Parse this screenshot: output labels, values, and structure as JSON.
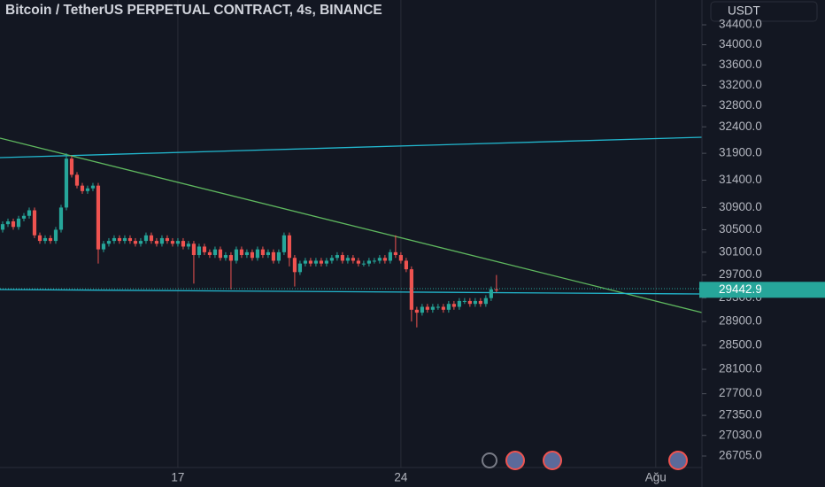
{
  "chart_data": {
    "type": "candlestick",
    "title": "Bitcoin / TetherUS PERPETUAL CONTRACT, 4s, BINANCE",
    "currency": "USDT",
    "colors": {
      "up": "#26a69a",
      "down": "#ef5350"
    },
    "log_scale": true,
    "grid": true,
    "categories": [
      null,
      null,
      null,
      null,
      null,
      null,
      null,
      null,
      null,
      null,
      null,
      null,
      null,
      null,
      null,
      null,
      null,
      null,
      null,
      null,
      null,
      null,
      null,
      null,
      null,
      null,
      null,
      null,
      null,
      null,
      null,
      null,
      null,
      null,
      null,
      null,
      null,
      null,
      null,
      null,
      null,
      null,
      null,
      null,
      null,
      null,
      null,
      null,
      null,
      null,
      null,
      null,
      null,
      null,
      null,
      null,
      null,
      null,
      null,
      null,
      null,
      null,
      null,
      null,
      null,
      null,
      null,
      null,
      null,
      null,
      null,
      null,
      null,
      null,
      null,
      null,
      null,
      null,
      null,
      null,
      null,
      null,
      null,
      null,
      null,
      null,
      null,
      null,
      null,
      null,
      null,
      null,
      null,
      null
    ],
    "open": [
      30500,
      30600,
      30650,
      30550,
      30700,
      30750,
      30850,
      30400,
      30300,
      30350,
      30300,
      30500,
      30900,
      31800,
      31500,
      31300,
      31200,
      31250,
      31300,
      30150,
      30250,
      30300,
      30350,
      30300,
      30350,
      30300,
      30250,
      30300,
      30400,
      30300,
      30250,
      30350,
      30300,
      30250,
      30300,
      30200,
      30250,
      30050,
      30200,
      30100,
      30050,
      30150,
      30000,
      30050,
      29950,
      30150,
      30050,
      30100,
      30000,
      30150,
      30050,
      30100,
      29950,
      30100,
      30400,
      30000,
      29750,
      29900,
      29950,
      29900,
      29950,
      29900,
      29950,
      30000,
      30050,
      29950,
      30000,
      29950,
      29900,
      29900,
      29950,
      29950,
      30000,
      29950,
      30100,
      30050,
      29950,
      29800,
      29100,
      29050,
      29150,
      29100,
      29150,
      29150,
      29100,
      29200,
      29150,
      29250,
      29250,
      29200,
      29250,
      29200,
      29300,
      29450
    ],
    "high": [
      30650,
      30700,
      30700,
      30750,
      30800,
      30900,
      30900,
      30450,
      30400,
      30400,
      30550,
      30950,
      31900,
      31850,
      31550,
      31350,
      31300,
      31350,
      31350,
      30300,
      30350,
      30400,
      30400,
      30400,
      30400,
      30350,
      30350,
      30450,
      30450,
      30350,
      30400,
      30400,
      30350,
      30350,
      30350,
      30300,
      30300,
      30250,
      30250,
      30150,
      30200,
      30200,
      30100,
      30100,
      30200,
      30200,
      30150,
      30150,
      30200,
      30200,
      30150,
      30150,
      30150,
      30450,
      30450,
      30050,
      29950,
      30000,
      30000,
      30000,
      30000,
      30000,
      30050,
      30100,
      30100,
      30050,
      30050,
      30000,
      29950,
      30000,
      30000,
      30050,
      30050,
      30150,
      30400,
      30100,
      30000,
      29850,
      29150,
      29200,
      29200,
      29200,
      29200,
      29200,
      29250,
      29250,
      29300,
      29300,
      29300,
      29300,
      29300,
      29350,
      29500,
      29700
    ],
    "low": [
      30450,
      30550,
      30500,
      30500,
      30650,
      30700,
      30350,
      30250,
      30250,
      30250,
      30250,
      30450,
      30850,
      31450,
      31250,
      31150,
      31150,
      31200,
      29900,
      30100,
      30200,
      30250,
      30250,
      30250,
      30250,
      30200,
      30200,
      30250,
      30250,
      30200,
      30200,
      30250,
      30200,
      30200,
      30150,
      30150,
      29550,
      30000,
      30050,
      30000,
      30000,
      29950,
      29950,
      29450,
      29900,
      30000,
      30000,
      29950,
      29950,
      30000,
      30000,
      29900,
      29900,
      30050,
      29850,
      29500,
      29700,
      29850,
      29850,
      29850,
      29850,
      29850,
      29900,
      29950,
      29900,
      29900,
      29900,
      29850,
      29850,
      29850,
      29900,
      29900,
      29900,
      29900,
      30000,
      29900,
      29750,
      28900,
      28800,
      29000,
      29050,
      29050,
      29100,
      29050,
      29050,
      29100,
      29100,
      29200,
      29150,
      29150,
      29150,
      29150,
      29250,
      29400
    ],
    "close": [
      30600,
      30650,
      30550,
      30700,
      30750,
      30850,
      30400,
      30300,
      30350,
      30300,
      30500,
      30900,
      31800,
      31500,
      31300,
      31200,
      31250,
      31300,
      30150,
      30250,
      30300,
      30350,
      30300,
      30350,
      30300,
      30250,
      30300,
      30400,
      30300,
      30250,
      30350,
      30300,
      30250,
      30300,
      30200,
      30250,
      30050,
      30200,
      30100,
      30050,
      30150,
      30000,
      30050,
      29950,
      30150,
      30050,
      30100,
      30000,
      30150,
      30050,
      30100,
      29950,
      30100,
      30400,
      30000,
      29750,
      29900,
      29950,
      29900,
      29950,
      29900,
      29950,
      30000,
      30050,
      29950,
      30000,
      29950,
      29900,
      29900,
      29950,
      29950,
      30000,
      29950,
      30100,
      30050,
      29950,
      29800,
      29100,
      29050,
      29150,
      29100,
      29150,
      29150,
      29100,
      29200,
      29150,
      29250,
      29250,
      29200,
      29250,
      29200,
      29300,
      29450,
      29442.9
    ],
    "xlim": [
      -0.5,
      131.7
    ],
    "xticks": [
      {
        "value": 33,
        "label": "17"
      },
      {
        "value": 75,
        "label": "24"
      },
      {
        "value": 123,
        "label": "Ağu"
      }
    ],
    "ylim": [
      26525,
      34905
    ],
    "yticks": [
      {
        "value": 34400,
        "label": "34400.0"
      },
      {
        "value": 34000,
        "label": "34000.0"
      },
      {
        "value": 33600,
        "label": "33600.0"
      },
      {
        "value": 33200,
        "label": "33200.0"
      },
      {
        "value": 32800,
        "label": "32800.0"
      },
      {
        "value": 32400,
        "label": "32400.0"
      },
      {
        "value": 31900,
        "label": "31900.0"
      },
      {
        "value": 31400,
        "label": "31400.0"
      },
      {
        "value": 30900,
        "label": "30900.0"
      },
      {
        "value": 30500,
        "label": "30500.0"
      },
      {
        "value": 30100,
        "label": "30100.0"
      },
      {
        "value": 29700,
        "label": "29700.0"
      },
      {
        "value": 29300,
        "label": "29300.0"
      },
      {
        "value": 28900,
        "label": "28900.0"
      },
      {
        "value": 28500,
        "label": "28500.0"
      },
      {
        "value": 28100,
        "label": "28100.0"
      },
      {
        "value": 27700,
        "label": "27700.0"
      },
      {
        "value": 27350,
        "label": "27350.0"
      },
      {
        "value": 27030,
        "label": "27030.0"
      },
      {
        "value": 26705,
        "label": "26705.0"
      }
    ]
  }
}
